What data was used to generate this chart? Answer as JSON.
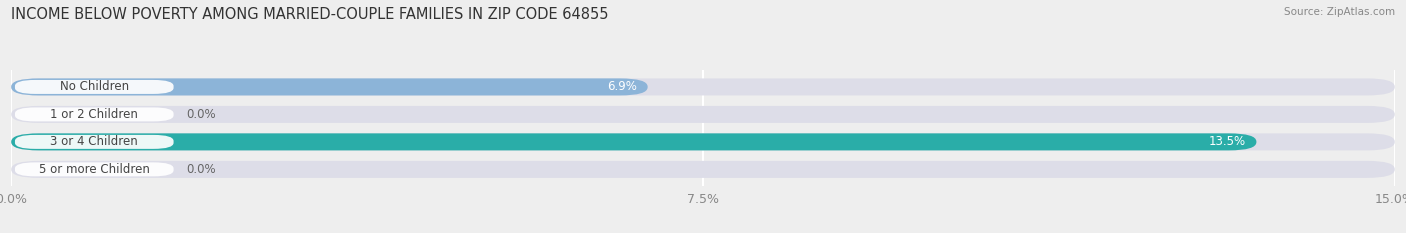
{
  "title": "INCOME BELOW POVERTY AMONG MARRIED-COUPLE FAMILIES IN ZIP CODE 64855",
  "source": "Source: ZipAtlas.com",
  "categories": [
    "No Children",
    "1 or 2 Children",
    "3 or 4 Children",
    "5 or more Children"
  ],
  "values": [
    6.9,
    0.0,
    13.5,
    0.0
  ],
  "bar_colors": [
    "#8cb4d8",
    "#c4a0bc",
    "#2aada8",
    "#9898c8"
  ],
  "xlim": [
    0,
    15.0
  ],
  "xticks": [
    0.0,
    7.5,
    15.0
  ],
  "xticklabels": [
    "0.0%",
    "7.5%",
    "15.0%"
  ],
  "background_color": "#eeeeee",
  "bar_bg_color": "#dddde8",
  "title_fontsize": 10.5,
  "tick_fontsize": 9,
  "label_fontsize": 8.5,
  "value_fontsize": 8.5
}
